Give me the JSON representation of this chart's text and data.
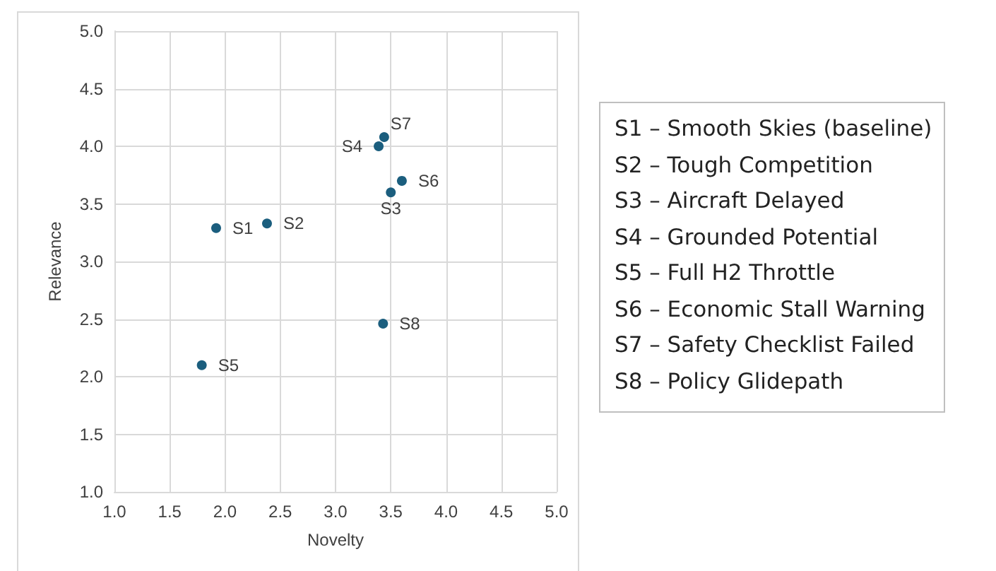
{
  "chart_data": {
    "type": "scatter",
    "xlabel": "Novelty",
    "ylabel": "Relevance",
    "x": [
      1.92,
      2.38,
      3.5,
      3.39,
      1.79,
      3.6,
      3.44,
      3.43
    ],
    "series": [
      {
        "color": "#1b5e7e",
        "values": [
          3.29,
          3.33,
          3.6,
          4.0,
          2.1,
          3.7,
          4.08,
          2.46
        ],
        "value_labels": [
          "S1",
          "S2",
          "S3",
          "S4",
          "S5",
          "S6",
          "S7",
          "S8"
        ]
      }
    ],
    "xlim": [
      1,
      5
    ],
    "xticks": [
      {
        "value": 1,
        "label": "1.0"
      },
      1.5,
      {
        "value": 2,
        "label": "2.0"
      },
      2.5,
      {
        "value": 3,
        "label": "3.0"
      },
      3.5,
      {
        "value": 4,
        "label": "4.0"
      },
      4.5,
      {
        "value": 5,
        "label": "5.0"
      }
    ],
    "ylim": [
      1,
      5
    ],
    "yticks": [
      {
        "value": 1,
        "label": "1.0"
      },
      1.5,
      {
        "value": 2,
        "label": "2.0"
      },
      2.5,
      {
        "value": 3,
        "label": "3.0"
      },
      3.5,
      {
        "value": 4,
        "label": "4.0"
      },
      4.5,
      {
        "value": 5,
        "label": "5.0"
      }
    ],
    "grid": true,
    "marker": "circle",
    "annotations": [
      "S1 – Smooth Skies (baseline)",
      "S2 – Tough Competition",
      "S3 – Aircraft Delayed",
      "S4 – Grounded Potential",
      "S5 – Full H2 Throttle",
      "S6 – Economic Stall Warning",
      "S7 – Safety Checklist Failed",
      "S8 – Policy Glidepath"
    ]
  }
}
